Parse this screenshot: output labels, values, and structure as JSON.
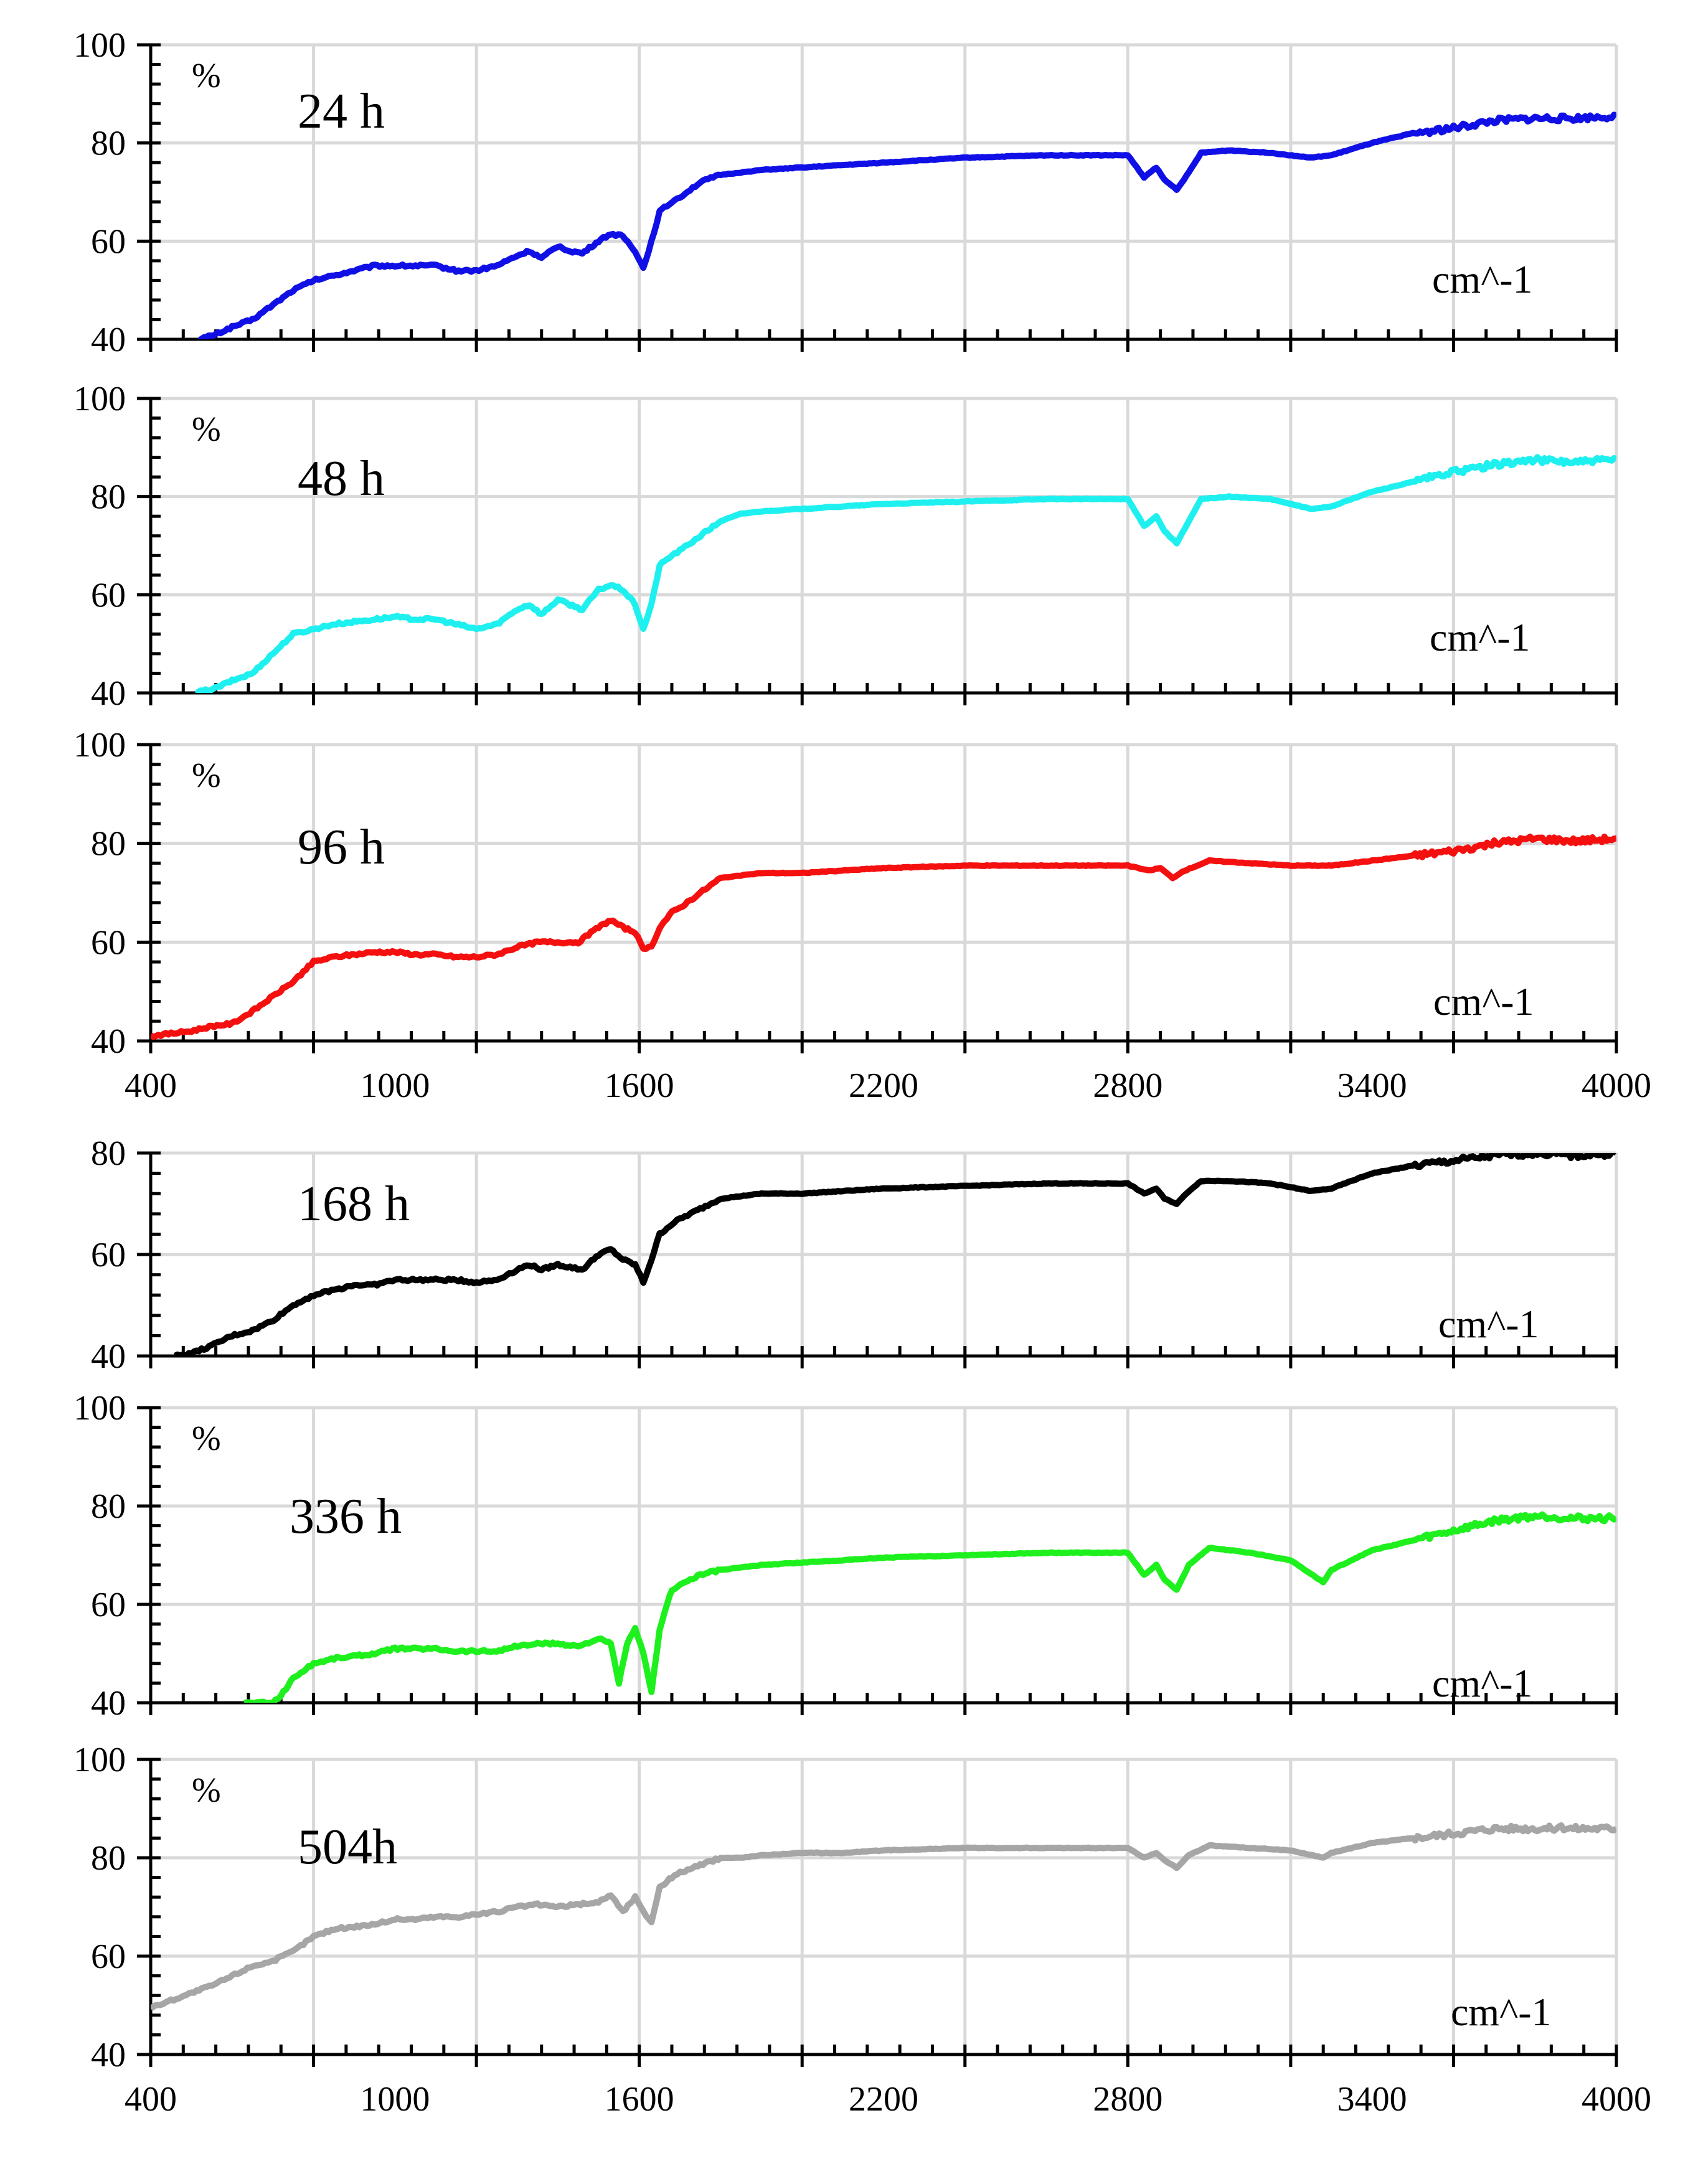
{
  "chart_data": [
    {
      "type": "line",
      "panel_label": "24 h",
      "ylabel": "%",
      "xlabel": "cm^-1",
      "color": "#1010e6",
      "xlim": [
        400,
        4000
      ],
      "ylim": [
        40,
        100
      ],
      "yticks": [
        40,
        60,
        80,
        100
      ],
      "xticks": [],
      "grid": true,
      "series": [
        {
          "name": "24 h",
          "x": [
            520,
            560,
            600,
            650,
            700,
            750,
            800,
            850,
            900,
            950,
            1000,
            1050,
            1100,
            1150,
            1200,
            1250,
            1300,
            1330,
            1360,
            1400,
            1430,
            1460,
            1500,
            1530,
            1560,
            1590,
            1610,
            1630,
            1650,
            1680,
            1700,
            1750,
            1800,
            1850,
            1900,
            2000,
            2100,
            2200,
            2400,
            2600,
            2800,
            2840,
            2870,
            2890,
            2920,
            2950,
            2980,
            3050,
            3150,
            3250,
            3300,
            3400,
            3500,
            3600,
            3700,
            3800,
            3900,
            4000
          ],
          "y": [
            40,
            41,
            42.5,
            44,
            47,
            50,
            52,
            53,
            54,
            55,
            55,
            55,
            55,
            54,
            54,
            55,
            57,
            58,
            56.5,
            59,
            58,
            57.5,
            60,
            61.5,
            61,
            58,
            54.5,
            60,
            66,
            68,
            69,
            72,
            73.5,
            74,
            74.5,
            75,
            75.5,
            76,
            77,
            77.5,
            77.5,
            73,
            75,
            72.5,
            70.5,
            74,
            78,
            78.5,
            78,
            77,
            77.5,
            80,
            82,
            83,
            84.5,
            85,
            85,
            85.5
          ]
        }
      ]
    },
    {
      "type": "line",
      "panel_label": "48 h",
      "ylabel": "%",
      "xlabel": "cm^-1",
      "color": "#1ef0f0",
      "xlim": [
        400,
        4000
      ],
      "ylim": [
        40,
        100
      ],
      "yticks": [
        40,
        60,
        80,
        100
      ],
      "xticks": [],
      "grid": true,
      "series": [
        {
          "name": "48 h",
          "x": [
            510,
            560,
            600,
            650,
            700,
            750,
            800,
            850,
            900,
            950,
            1000,
            1050,
            1100,
            1150,
            1200,
            1250,
            1300,
            1330,
            1360,
            1400,
            1430,
            1460,
            1500,
            1530,
            1560,
            1590,
            1610,
            1630,
            1650,
            1680,
            1700,
            1750,
            1800,
            1850,
            1900,
            2000,
            2100,
            2200,
            2400,
            2600,
            2800,
            2840,
            2870,
            2890,
            2920,
            2950,
            2980,
            3050,
            3150,
            3250,
            3300,
            3400,
            3500,
            3600,
            3700,
            3800,
            3900,
            4000
          ],
          "y": [
            40,
            41,
            42.5,
            44,
            48,
            52,
            53,
            54,
            54.5,
            55,
            55.5,
            55,
            55,
            54,
            53,
            54,
            57,
            58,
            56,
            59,
            58,
            57,
            61,
            62,
            61,
            58,
            53,
            58,
            66,
            68,
            69,
            72,
            75,
            76.5,
            77,
            77.5,
            78,
            78.5,
            79,
            79.5,
            79.5,
            74,
            76,
            73,
            70.5,
            75,
            79.5,
            80,
            79.5,
            77.5,
            78,
            81,
            83,
            85,
            86.5,
            87.5,
            87,
            87.5
          ]
        }
      ]
    },
    {
      "type": "line",
      "panel_label": "96 h",
      "ylabel": "%",
      "xlabel": "cm^-1",
      "color": "#f51010",
      "xlim": [
        400,
        4000
      ],
      "ylim": [
        40,
        100
      ],
      "yticks": [
        40,
        60,
        80,
        100
      ],
      "xticks": [
        400,
        1000,
        1600,
        2200,
        2800,
        3400,
        4000
      ],
      "grid": true,
      "series": [
        {
          "name": "96 h",
          "x": [
            400,
            450,
            500,
            550,
            600,
            650,
            700,
            750,
            800,
            850,
            900,
            950,
            1000,
            1050,
            1100,
            1150,
            1200,
            1250,
            1300,
            1350,
            1400,
            1450,
            1500,
            1530,
            1560,
            1590,
            1610,
            1630,
            1650,
            1680,
            1700,
            1750,
            1800,
            1850,
            1900,
            2000,
            2100,
            2200,
            2400,
            2600,
            2800,
            2850,
            2880,
            2910,
            2940,
            3000,
            3100,
            3200,
            3300,
            3400,
            3500,
            3600,
            3700,
            3800,
            3900,
            4000
          ],
          "y": [
            41,
            41.5,
            42,
            43,
            43.5,
            46,
            49,
            52,
            56,
            57,
            57.5,
            58,
            58,
            57.5,
            57.5,
            57,
            57,
            57.5,
            59,
            60,
            60,
            60,
            63,
            64.5,
            63,
            62,
            58.5,
            59,
            63,
            66,
            67,
            70,
            73,
            73.5,
            74,
            74,
            74.5,
            75,
            75.5,
            75.5,
            75.5,
            74.5,
            75,
            73,
            74.5,
            76.5,
            76,
            75.5,
            75.5,
            76.5,
            77.5,
            78.5,
            80,
            81,
            80.5,
            81
          ]
        }
      ]
    },
    {
      "type": "line",
      "panel_label": "168 h",
      "ylabel": "",
      "xlabel": "cm^-1",
      "color": "#000000",
      "xlim": [
        400,
        4000
      ],
      "ylim": [
        40,
        80
      ],
      "yticks": [
        40,
        60,
        80
      ],
      "xticks": [],
      "grid": true,
      "series": [
        {
          "name": "168 h",
          "x": [
            460,
            500,
            550,
            600,
            650,
            700,
            750,
            800,
            850,
            900,
            950,
            1000,
            1050,
            1100,
            1150,
            1200,
            1250,
            1300,
            1330,
            1360,
            1400,
            1430,
            1460,
            1500,
            1530,
            1560,
            1590,
            1610,
            1630,
            1650,
            1680,
            1700,
            1750,
            1800,
            1850,
            1900,
            2000,
            2100,
            2200,
            2400,
            2600,
            2800,
            2840,
            2870,
            2890,
            2920,
            2950,
            2980,
            3050,
            3150,
            3250,
            3300,
            3400,
            3500,
            3600,
            3700,
            3800,
            3900,
            4000
          ],
          "y": [
            40,
            40.5,
            42,
            44,
            45,
            47,
            50,
            52,
            53,
            54,
            54,
            55,
            55,
            55,
            55,
            54.5,
            55,
            57,
            58,
            57,
            58,
            57.5,
            57,
            60,
            61,
            59,
            58,
            54.5,
            59,
            64,
            66,
            67,
            69,
            71,
            71.5,
            72,
            72,
            72.5,
            73,
            73.5,
            74,
            74,
            72,
            73,
            71,
            70,
            72.5,
            74.5,
            74.5,
            74,
            72.5,
            73,
            76,
            77.5,
            78.5,
            79.5,
            80,
            79.5,
            80
          ]
        }
      ]
    },
    {
      "type": "line",
      "panel_label": "336 h",
      "ylabel": "%",
      "xlabel": "cm^-1",
      "color": "#1ef01e",
      "xlim": [
        400,
        4000
      ],
      "ylim": [
        40,
        100
      ],
      "yticks": [
        40,
        60,
        80,
        100
      ],
      "xticks": [],
      "grid": true,
      "series": [
        {
          "name": "336 h",
          "x": [
            630,
            660,
            700,
            720,
            750,
            800,
            850,
            900,
            950,
            1000,
            1050,
            1100,
            1150,
            1200,
            1250,
            1300,
            1350,
            1400,
            1450,
            1500,
            1530,
            1550,
            1570,
            1590,
            1610,
            1630,
            1650,
            1680,
            1700,
            1750,
            1800,
            1850,
            1900,
            2000,
            2100,
            2200,
            2400,
            2600,
            2800,
            2840,
            2870,
            2890,
            2920,
            2950,
            3000,
            3100,
            3200,
            3280,
            3300,
            3400,
            3500,
            3600,
            3700,
            3800,
            3900,
            4000
          ],
          "y": [
            40,
            40,
            40,
            41.5,
            45,
            48,
            49,
            49.5,
            50,
            51,
            51,
            51,
            50.5,
            50.5,
            50.5,
            51.5,
            52,
            52,
            51.5,
            53,
            52,
            44,
            52,
            55,
            50,
            42,
            55,
            63,
            64,
            66,
            67,
            67.5,
            68,
            68.5,
            69,
            69.5,
            70,
            70.5,
            70.5,
            66,
            68,
            65,
            63,
            68,
            71.5,
            70.5,
            69,
            64.5,
            67,
            71,
            73,
            75,
            77,
            78,
            77.5,
            77.5
          ]
        }
      ]
    },
    {
      "type": "line",
      "panel_label": "504h",
      "ylabel": "%",
      "xlabel": "cm^-1",
      "color": "#a6a6a6",
      "xlim": [
        400,
        4000
      ],
      "ylim": [
        40,
        100
      ],
      "yticks": [
        40,
        60,
        80,
        100
      ],
      "xticks": [
        400,
        1000,
        1600,
        2200,
        2800,
        3400,
        4000
      ],
      "grid": true,
      "series": [
        {
          "name": "504h",
          "x": [
            400,
            450,
            500,
            550,
            600,
            650,
            700,
            750,
            800,
            850,
            900,
            950,
            1000,
            1050,
            1100,
            1150,
            1200,
            1250,
            1300,
            1350,
            1400,
            1450,
            1500,
            1530,
            1560,
            1590,
            1610,
            1630,
            1650,
            1680,
            1700,
            1750,
            1800,
            1850,
            1900,
            2000,
            2100,
            2200,
            2400,
            2600,
            2800,
            2840,
            2870,
            2890,
            2920,
            2950,
            3000,
            3100,
            3200,
            3280,
            3300,
            3400,
            3500,
            3600,
            3700,
            3800,
            3900,
            4000
          ],
          "y": [
            49.5,
            51,
            52.5,
            54,
            56,
            58,
            59,
            61,
            64,
            65.5,
            66,
            66.5,
            67.5,
            67.5,
            68,
            68,
            68.5,
            69,
            70,
            70.5,
            70,
            70.5,
            71,
            72.5,
            69,
            72,
            69,
            67,
            74,
            76,
            77,
            78.5,
            80,
            80,
            80.5,
            81,
            81,
            81.5,
            82,
            82,
            82,
            80,
            81,
            79.5,
            78,
            80.5,
            82.5,
            82,
            81.5,
            80,
            81,
            83,
            84,
            85,
            86,
            86,
            86,
            86
          ]
        }
      ]
    }
  ]
}
